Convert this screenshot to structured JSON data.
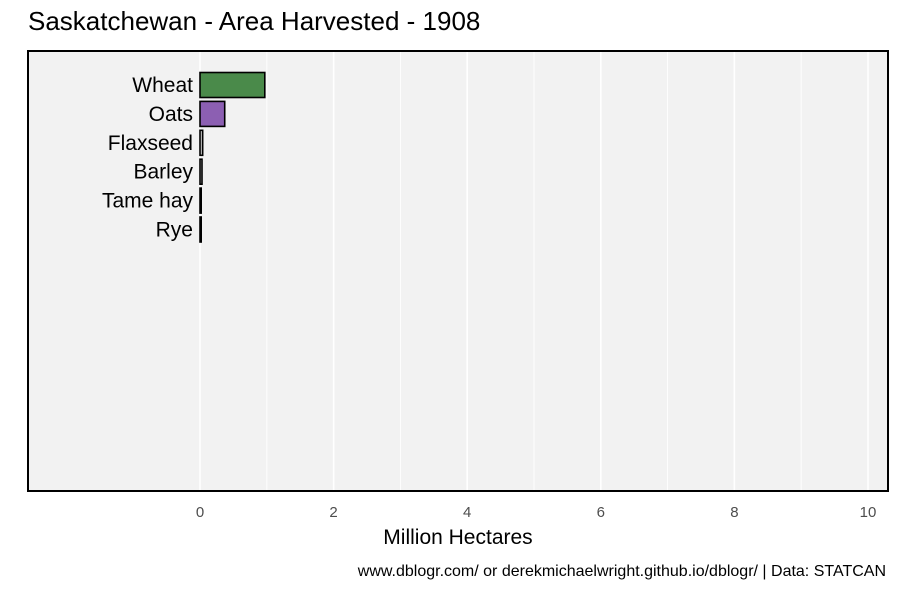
{
  "chart_data": {
    "type": "bar",
    "orientation": "horizontal",
    "title": "Saskatchewan - Area Harvested - 1908",
    "xlabel": "Million Hectares",
    "ylabel": "",
    "categories": [
      "Wheat",
      "Oats",
      "Flaxseed",
      "Barley",
      "Tame hay",
      "Rye"
    ],
    "values": [
      0.97,
      0.37,
      0.04,
      0.03,
      0.01,
      0.005
    ],
    "colors": [
      "#4a8a4a",
      "#8c5fb2",
      "#c8c8c8",
      "#c8c8c8",
      "#c8c8c8",
      "#c8c8c8"
    ],
    "xlim": [
      -2.55,
      10.1
    ],
    "xticks": [
      0,
      2,
      4,
      6,
      8,
      10
    ],
    "grid": true,
    "background": "#f2f2f2",
    "caption": "www.dblogr.com/ or derekmichaelwright.github.io/dblogr/ | Data: STATCAN"
  }
}
